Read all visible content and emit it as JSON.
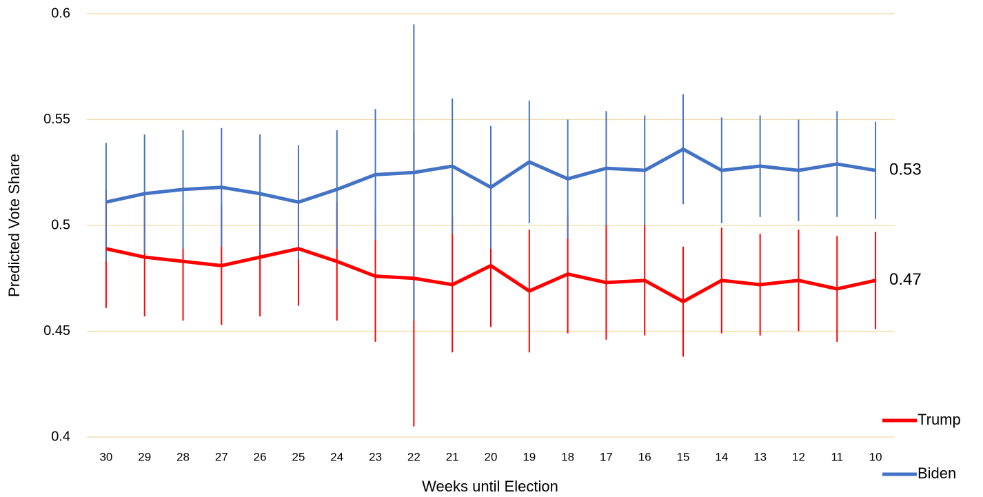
{
  "chart_data": {
    "type": "line",
    "x_label": "Weeks until Election",
    "y_label": "Predicted Vote Share",
    "categories": [
      "30",
      "29",
      "28",
      "27",
      "26",
      "25",
      "24",
      "23",
      "22",
      "21",
      "20",
      "19",
      "18",
      "17",
      "16",
      "15",
      "14",
      "13",
      "12",
      "11",
      "10"
    ],
    "ylim": [
      0.4,
      0.6
    ],
    "yticks": [
      0.4,
      0.45,
      0.5,
      0.55,
      0.6
    ],
    "grid": true,
    "grid_color": "#f0d9a8",
    "legend": "bottom-right",
    "series": [
      {
        "name": "Trump",
        "color": "#ff0000",
        "values": [
          0.489,
          0.485,
          0.483,
          0.481,
          0.485,
          0.489,
          0.483,
          0.476,
          0.475,
          0.472,
          0.481,
          0.469,
          0.477,
          0.473,
          0.474,
          0.464,
          0.474,
          0.472,
          0.474,
          0.47,
          0.474
        ],
        "errors": [
          0.028,
          0.028,
          0.028,
          0.028,
          0.028,
          0.027,
          0.028,
          0.031,
          0.07,
          0.032,
          0.029,
          0.029,
          0.028,
          0.027,
          0.026,
          0.026,
          0.025,
          0.024,
          0.024,
          0.025,
          0.023
        ],
        "end_label": "0.47"
      },
      {
        "name": "Biden",
        "color": "#4472c4",
        "values": [
          0.511,
          0.515,
          0.517,
          0.518,
          0.515,
          0.511,
          0.517,
          0.524,
          0.525,
          0.528,
          0.518,
          0.53,
          0.522,
          0.527,
          0.526,
          0.536,
          0.526,
          0.528,
          0.526,
          0.529,
          0.526
        ],
        "errors": [
          0.028,
          0.028,
          0.028,
          0.028,
          0.028,
          0.027,
          0.028,
          0.031,
          0.07,
          0.032,
          0.029,
          0.029,
          0.028,
          0.027,
          0.026,
          0.026,
          0.025,
          0.024,
          0.024,
          0.025,
          0.023
        ],
        "end_label": "0.53"
      }
    ]
  }
}
